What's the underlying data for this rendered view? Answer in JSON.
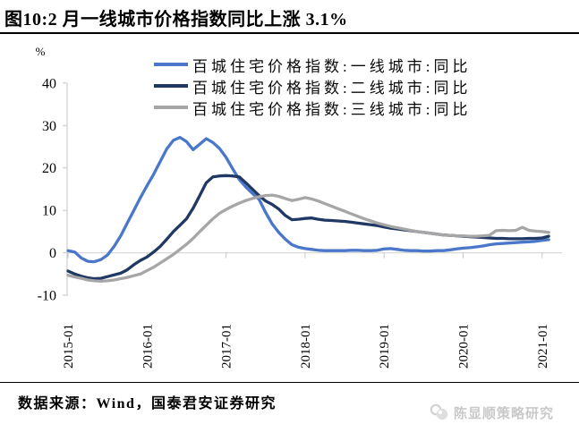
{
  "header": {
    "title": "图10:2 月一线城市价格指数同比上涨 3.1%"
  },
  "chart_data": {
    "type": "line",
    "title": "图10:2 月一线城市价格指数同比上涨 3.1%",
    "unit_label": "%",
    "legend_position": "top",
    "grid": "zero-line-only",
    "ylim": [
      -10,
      40
    ],
    "y_ticks": [
      40,
      30,
      20,
      10,
      0,
      -10
    ],
    "x_tick_labels": [
      "2015-01",
      "2016-01",
      "2017-01",
      "2018-01",
      "2019-01",
      "2020-01",
      "2021-01"
    ],
    "x_monthly_start": "2015-01",
    "x_monthly_end": "2021-02",
    "series": [
      {
        "name": "百城住宅价格指数:一线城市:同比",
        "color": "#4a77c9",
        "values": [
          0.5,
          0.2,
          -1.2,
          -2.0,
          -2.1,
          -1.6,
          -0.5,
          1.5,
          4.0,
          7.0,
          10.0,
          13.0,
          15.8,
          18.5,
          21.5,
          24.5,
          26.5,
          27.2,
          26.2,
          24.3,
          25.6,
          26.9,
          26.0,
          24.6,
          22.5,
          19.8,
          17.3,
          15.5,
          14.0,
          12.6,
          9.5,
          6.8,
          4.8,
          3.2,
          1.9,
          1.3,
          1.0,
          0.8,
          0.6,
          0.5,
          0.5,
          0.5,
          0.5,
          0.6,
          0.6,
          0.5,
          0.5,
          0.6,
          0.9,
          1.0,
          0.8,
          0.6,
          0.5,
          0.5,
          0.4,
          0.4,
          0.5,
          0.5,
          0.7,
          0.9,
          1.1,
          1.2,
          1.4,
          1.6,
          1.9,
          2.1,
          2.2,
          2.3,
          2.4,
          2.5,
          2.6,
          2.7,
          2.9,
          3.1
        ]
      },
      {
        "name": "百城住宅价格指数:二线城市:同比",
        "color": "#1f3864",
        "values": [
          -4.3,
          -5.0,
          -5.5,
          -5.9,
          -6.1,
          -6.0,
          -5.6,
          -5.2,
          -4.8,
          -4.0,
          -2.8,
          -1.8,
          -1.0,
          0.2,
          1.5,
          3.2,
          5.0,
          6.5,
          8.0,
          10.5,
          13.5,
          16.5,
          17.9,
          18.1,
          18.2,
          18.1,
          17.9,
          16.5,
          15.0,
          13.5,
          12.2,
          11.4,
          10.3,
          8.8,
          7.8,
          7.9,
          8.1,
          8.2,
          7.9,
          7.7,
          7.6,
          7.5,
          7.4,
          7.2,
          7.0,
          6.8,
          6.6,
          6.4,
          6.1,
          5.8,
          5.6,
          5.4,
          5.2,
          5.0,
          4.8,
          4.6,
          4.4,
          4.2,
          4.1,
          4.0,
          3.9,
          3.8,
          3.7,
          3.6,
          3.5,
          3.4,
          3.4,
          3.3,
          3.3,
          3.3,
          3.4,
          3.4,
          3.5,
          3.9
        ]
      },
      {
        "name": "百城住宅价格指数:三线城市:同比",
        "color": "#a6a6a6",
        "values": [
          -5.3,
          -5.7,
          -6.0,
          -6.4,
          -6.6,
          -6.7,
          -6.6,
          -6.4,
          -6.1,
          -5.8,
          -5.4,
          -5.0,
          -4.2,
          -3.4,
          -2.4,
          -1.4,
          -0.4,
          0.8,
          2.0,
          3.4,
          5.0,
          6.5,
          8.0,
          9.3,
          10.2,
          11.0,
          11.7,
          12.3,
          12.8,
          13.2,
          13.5,
          13.6,
          13.3,
          12.8,
          12.3,
          12.6,
          13.0,
          12.7,
          12.2,
          11.6,
          11.0,
          10.4,
          9.8,
          9.2,
          8.6,
          8.0,
          7.5,
          7.0,
          6.6,
          6.2,
          5.9,
          5.6,
          5.3,
          5.0,
          4.8,
          4.6,
          4.4,
          4.2,
          4.1,
          4.0,
          4.0,
          3.9,
          3.9,
          4.0,
          4.1,
          5.2,
          5.3,
          5.2,
          5.3,
          6.0,
          5.3,
          5.1,
          5.0,
          4.8
        ]
      }
    ],
    "axis_color": "#c6c6c6",
    "zero_line_color": "#d9d9d9"
  },
  "footer": {
    "source": "数据来源：Wind，国泰君安证券研究",
    "watermark": "陈显顺策略研究"
  }
}
